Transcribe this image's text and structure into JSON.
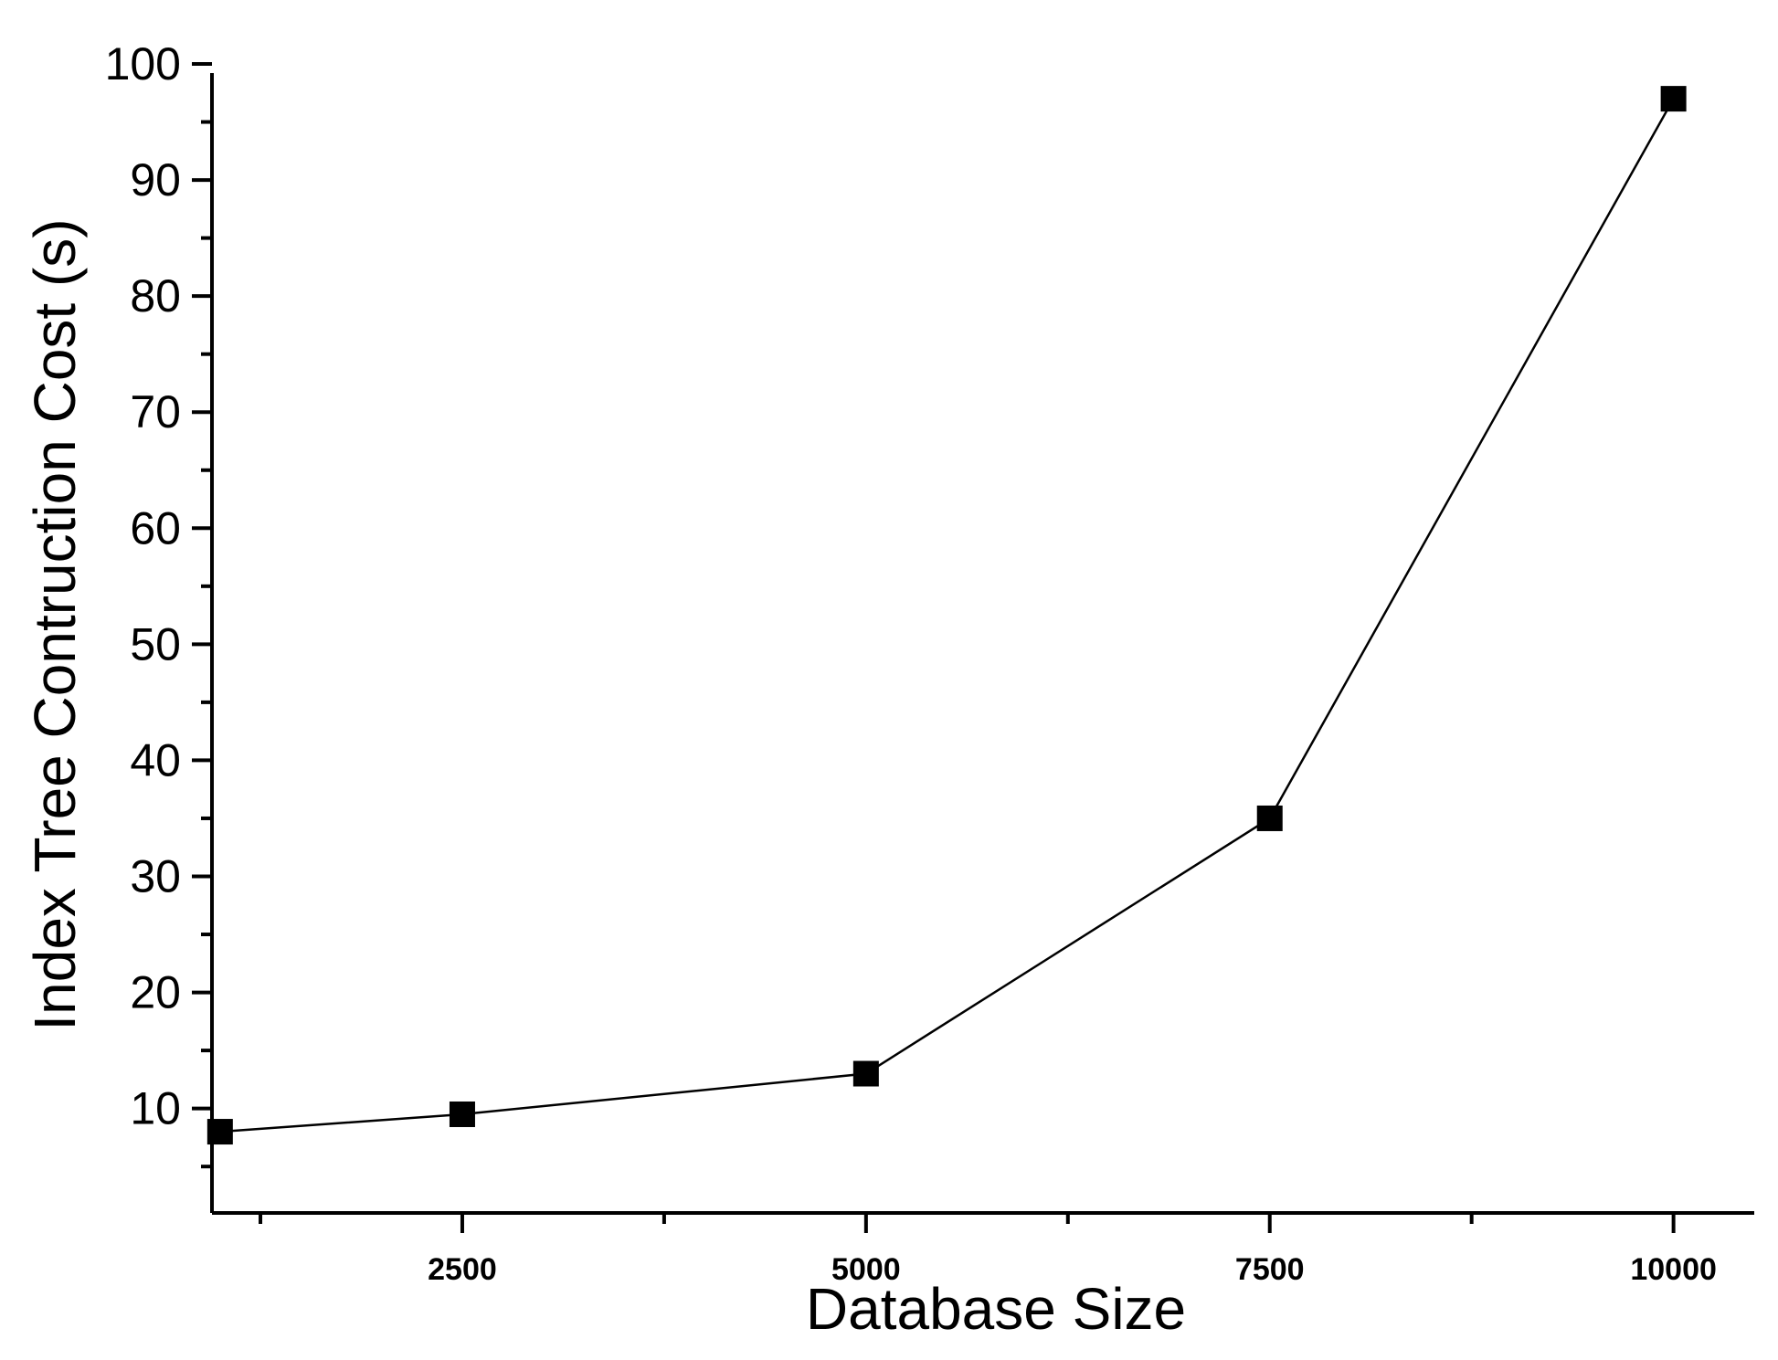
{
  "chart_data": {
    "type": "line",
    "title": "",
    "xlabel": "Database Size",
    "ylabel": "Index Tree Contruction Cost (s)",
    "xlim": [
      950,
      10500
    ],
    "ylim": [
      1,
      100
    ],
    "x_ticks": [
      2500,
      5000,
      7500,
      10000
    ],
    "x_tick_labels": [
      "2500",
      "5000",
      "7500",
      "10000"
    ],
    "x_minor_ticks": [
      1250,
      3750,
      6250,
      8750
    ],
    "y_ticks": [
      10,
      20,
      30,
      40,
      50,
      60,
      70,
      80,
      90,
      100
    ],
    "y_tick_labels": [
      "10",
      "20",
      "30",
      "40",
      "50",
      "60",
      "70",
      "80",
      "90",
      "100"
    ],
    "y_minor_ticks": [
      5,
      15,
      25,
      35,
      45,
      55,
      65,
      75,
      85,
      95
    ],
    "grid": false,
    "legend": "none",
    "marker": "filled-square",
    "colors": {
      "line": "#000000",
      "marker": "#000000",
      "axis": "#000000"
    },
    "series": [
      {
        "x": [
          1000,
          2500,
          5000,
          7500,
          10000
        ],
        "values": [
          8,
          9.5,
          13,
          35,
          97
        ]
      }
    ]
  }
}
